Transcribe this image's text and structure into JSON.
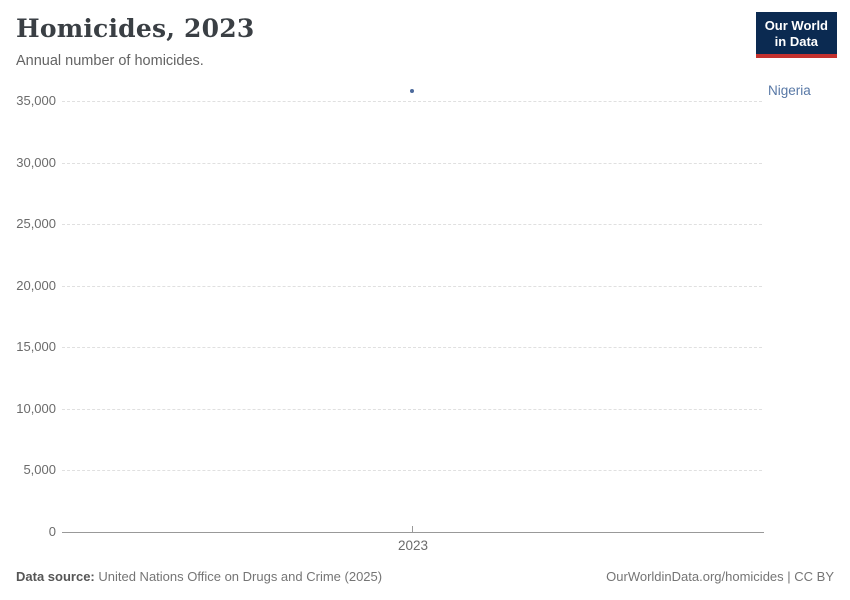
{
  "header": {
    "title": "Homicides, 2023",
    "subtitle": "Annual number of homicides."
  },
  "logo": {
    "line1": "Our World",
    "line2": "in Data",
    "bg_color": "#0b2a51",
    "accent_color": "#c4312e"
  },
  "chart_data": {
    "type": "scatter",
    "title": "Homicides, 2023",
    "subtitle": "Annual number of homicides.",
    "x": [
      2023
    ],
    "xticks": [
      "2023"
    ],
    "series": [
      {
        "name": "Nigeria",
        "values": [
          35800
        ],
        "color": "#4c6a9c",
        "label_color": "#5878a6"
      }
    ],
    "yticks": [
      0,
      5000,
      10000,
      15000,
      20000,
      25000,
      30000,
      35000
    ],
    "ylim": [
      0,
      35000
    ],
    "grid": "horizontal-dashed",
    "legend_position": "entity-label-right"
  },
  "footer": {
    "source_label": "Data source:",
    "source_text": " United Nations Office on Drugs and Crime (2025)",
    "rights": "OurWorldinData.org/homicides | CC BY"
  }
}
